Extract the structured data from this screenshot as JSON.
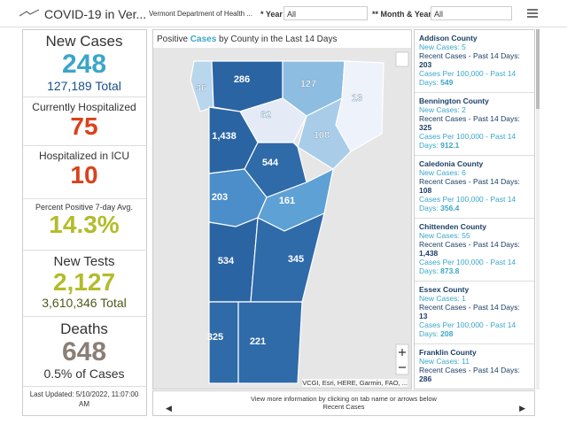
{
  "header": {
    "title": "COVID-19 in Ver...",
    "subtitle": "Vermont Department of Health ...",
    "filters": [
      {
        "label": "* Year",
        "value": "All"
      },
      {
        "label": "** Month & Year",
        "value": "All"
      }
    ]
  },
  "stats": [
    {
      "label": "New Cases",
      "value": "248",
      "sub": "127,189 Total"
    },
    {
      "label": "Currently Hospitalized",
      "value": "75"
    },
    {
      "label": "Hospitalized in ICU",
      "value": "10"
    },
    {
      "label": "Percent Positive 7-day Avg.",
      "value": "14.3%"
    },
    {
      "label": "New Tests",
      "value": "2,127",
      "sub": "3,610,346 Total"
    },
    {
      "label": "Deaths",
      "value": "648",
      "sub": "0.5% of Cases"
    }
  ],
  "last_updated": "Last Updated: 5/10/2022, 11:07:00 AM",
  "map": {
    "title_pre": "Positive ",
    "title_em": "Cases",
    "title_post": " by County in the Last 14 Days",
    "labels": [
      "36",
      "286",
      "127",
      "13",
      "62",
      "1,438",
      "108",
      "544",
      "203",
      "161",
      "534",
      "345",
      "325",
      "221"
    ],
    "attribution": "VCGI, Esri, HERE, Garmin, FAO, ..."
  },
  "counties": [
    {
      "name": "Addison County",
      "new": "New Cases: 5",
      "recent": "Recent Cases - Past 14 Days:",
      "recent_value": "203",
      "per100k": "Cases Per 100,000 - Past 14 Days:",
      "per100k_value": "549"
    },
    {
      "name": "Bennington County",
      "new": "New Cases: 2",
      "recent": "Recent Cases - Past 14 Days:",
      "recent_value": "325",
      "per100k": "Cases Per 100,000 - Past 14 Days:",
      "per100k_value": "912.1"
    },
    {
      "name": "Caledonia County",
      "new": "New Cases: 6",
      "recent": "Recent Cases - Past 14 Days:",
      "recent_value": "108",
      "per100k": "Cases Per 100,000 - Past 14 Days:",
      "per100k_value": "356.4"
    },
    {
      "name": "Chittenden County",
      "new": "New Cases: 55",
      "recent": "Recent Cases - Past 14 Days:",
      "recent_value": "1,438",
      "per100k": "Cases Per 100,000 - Past 14 Days:",
      "per100k_value": "873.8"
    },
    {
      "name": "Essex County",
      "new": "New Cases: 1",
      "recent": "Recent Cases - Past 14 Days:",
      "recent_value": "13",
      "per100k": "Cases Per 100,000 - Past 14 Days:",
      "per100k_value": "208"
    },
    {
      "name": "Franklin County",
      "new": "New Cases: 11",
      "recent": "Recent Cases - Past 14 Days:",
      "recent_value": "286"
    }
  ],
  "footer": {
    "hint": "View more information by clicking on tab name or arrows below",
    "tab": "Recent Cases"
  }
}
